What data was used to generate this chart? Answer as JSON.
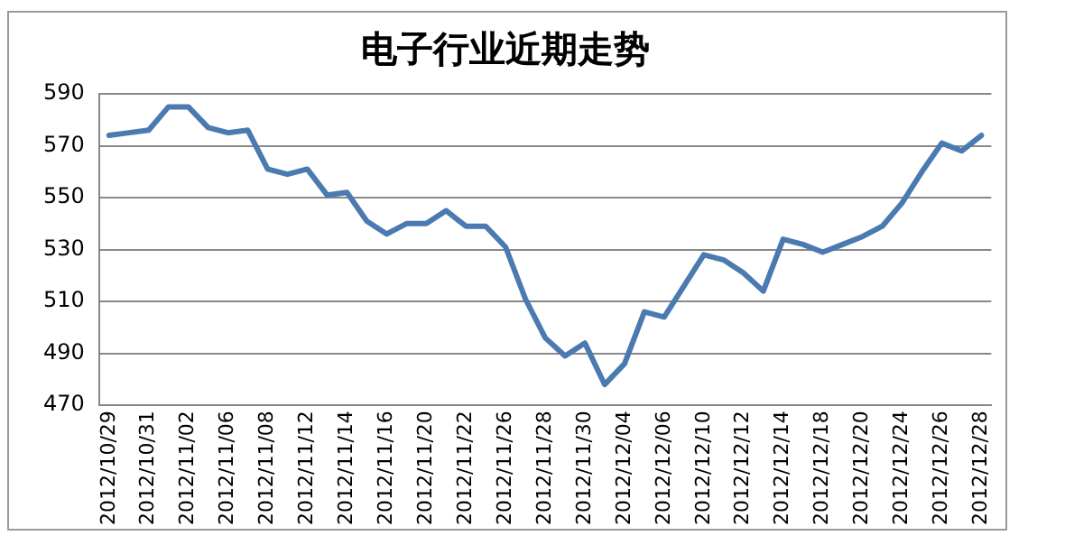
{
  "chart_data": {
    "type": "line",
    "title": "电子行业近期走势",
    "categories": [
      "2012/10/29",
      null,
      "2012/10/31",
      null,
      "2012/11/02",
      null,
      "2012/11/06",
      null,
      "2012/11/08",
      null,
      "2012/11/12",
      null,
      "2012/11/14",
      null,
      "2012/11/16",
      null,
      "2012/11/20",
      null,
      "2012/11/22",
      null,
      "2012/11/26",
      null,
      "2012/11/28",
      null,
      "2012/11/30",
      null,
      "2012/12/04",
      null,
      "2012/12/06",
      null,
      "2012/12/10",
      null,
      "2012/12/12",
      null,
      "2012/12/14",
      null,
      "2012/12/18",
      null,
      "2012/12/20",
      null,
      "2012/12/24",
      null,
      "2012/12/26",
      null,
      "2012/12/28"
    ],
    "series": [
      {
        "color": "#4a7ab0",
        "values": [
          574,
          575,
          576,
          585,
          585,
          577,
          575,
          576,
          561,
          559,
          561,
          551,
          552,
          541,
          536,
          540,
          540,
          545,
          539,
          539,
          531,
          511,
          496,
          489,
          494,
          478,
          486,
          506,
          504,
          516,
          528,
          526,
          521,
          514,
          534,
          532,
          529,
          532,
          535,
          539,
          548,
          560,
          571,
          568,
          574
        ]
      }
    ],
    "ylim": [
      470,
      590
    ],
    "yticks": [
      470,
      490,
      510,
      530,
      550,
      570,
      590
    ],
    "grid": "y",
    "legend": false,
    "marker": "none",
    "line_style": "solid"
  }
}
